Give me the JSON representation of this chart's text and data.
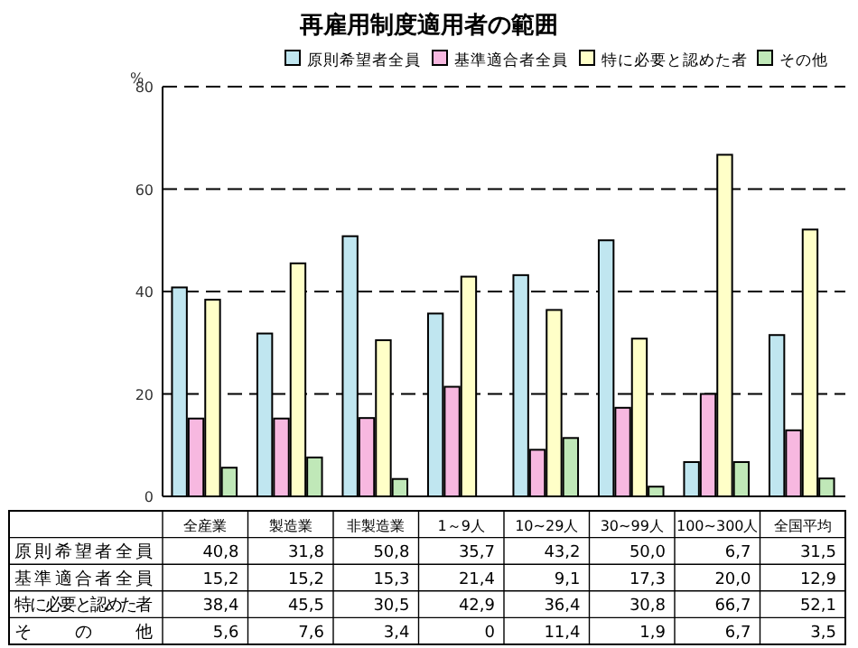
{
  "chart_data": {
    "type": "bar",
    "title": "再雇用制度適用者の範囲",
    "ylabel": "%",
    "categories": [
      "全産業",
      "製造業",
      "非製造業",
      "1～9人",
      "10~29人",
      "30~99人",
      "100~300人",
      "全国平均"
    ],
    "series": [
      {
        "name": "原則希望者全員",
        "color": "#c0e6f0",
        "values": [
          40.8,
          31.8,
          50.8,
          35.7,
          43.2,
          50.0,
          6.7,
          31.5
        ],
        "value_labels": [
          "40,8",
          "31,8",
          "50,8",
          "35,7",
          "43,2",
          "50,0",
          "6,7",
          "31,5"
        ]
      },
      {
        "name": "基準適合者全員",
        "color": "#f7b8e0",
        "values": [
          15.2,
          15.2,
          15.3,
          21.4,
          9.1,
          17.3,
          20.0,
          12.9
        ],
        "value_labels": [
          "15,2",
          "15,2",
          "15,3",
          "21,4",
          "9,1",
          "17,3",
          "20,0",
          "12,9"
        ]
      },
      {
        "name": "特に必要と認めた者",
        "color": "#ffffc8",
        "values": [
          38.4,
          45.5,
          30.5,
          42.9,
          36.4,
          30.8,
          66.7,
          52.1
        ],
        "value_labels": [
          "38,4",
          "45,5",
          "30,5",
          "42,9",
          "36,4",
          "30,8",
          "66,7",
          "52,1"
        ]
      },
      {
        "name": "その他",
        "color": "#c0e8b8",
        "values": [
          5.6,
          7.6,
          3.4,
          0,
          11.4,
          1.9,
          6.7,
          3.5
        ],
        "value_labels": [
          "5,6",
          "7,6",
          "3,4",
          "0",
          "11,4",
          "1,9",
          "6,7",
          "3,5"
        ]
      }
    ],
    "ylim": [
      0,
      80
    ],
    "yticks": [
      0,
      20,
      40,
      60,
      80
    ],
    "grid": "y",
    "legend": "top right"
  }
}
